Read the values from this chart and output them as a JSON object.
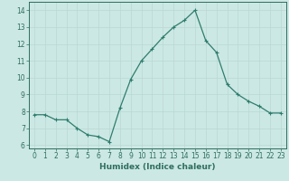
{
  "x": [
    0,
    1,
    2,
    3,
    4,
    5,
    6,
    7,
    8,
    9,
    10,
    11,
    12,
    13,
    14,
    15,
    16,
    17,
    18,
    19,
    20,
    21,
    22,
    23
  ],
  "y": [
    7.8,
    7.8,
    7.5,
    7.5,
    7.0,
    6.6,
    6.5,
    6.2,
    8.2,
    9.9,
    11.0,
    11.7,
    12.4,
    13.0,
    13.4,
    14.0,
    12.2,
    11.5,
    9.6,
    9.0,
    8.6,
    8.3,
    7.9,
    7.9
  ],
  "line_color": "#2e7d6e",
  "marker": "+",
  "marker_size": 3,
  "marker_lw": 0.8,
  "line_width": 0.9,
  "bg_color": "#cce8e4",
  "grid_color": "#b8d8d4",
  "xlabel": "Humidex (Indice chaleur)",
  "xlim": [
    -0.5,
    23.5
  ],
  "ylim": [
    5.8,
    14.5
  ],
  "xticks": [
    0,
    1,
    2,
    3,
    4,
    5,
    6,
    7,
    8,
    9,
    10,
    11,
    12,
    13,
    14,
    15,
    16,
    17,
    18,
    19,
    20,
    21,
    22,
    23
  ],
  "yticks": [
    6,
    7,
    8,
    9,
    10,
    11,
    12,
    13,
    14
  ],
  "tick_label_fontsize": 5.5,
  "xlabel_fontsize": 6.5,
  "axis_color": "#2e6e60",
  "spine_color": "#2e6e60"
}
